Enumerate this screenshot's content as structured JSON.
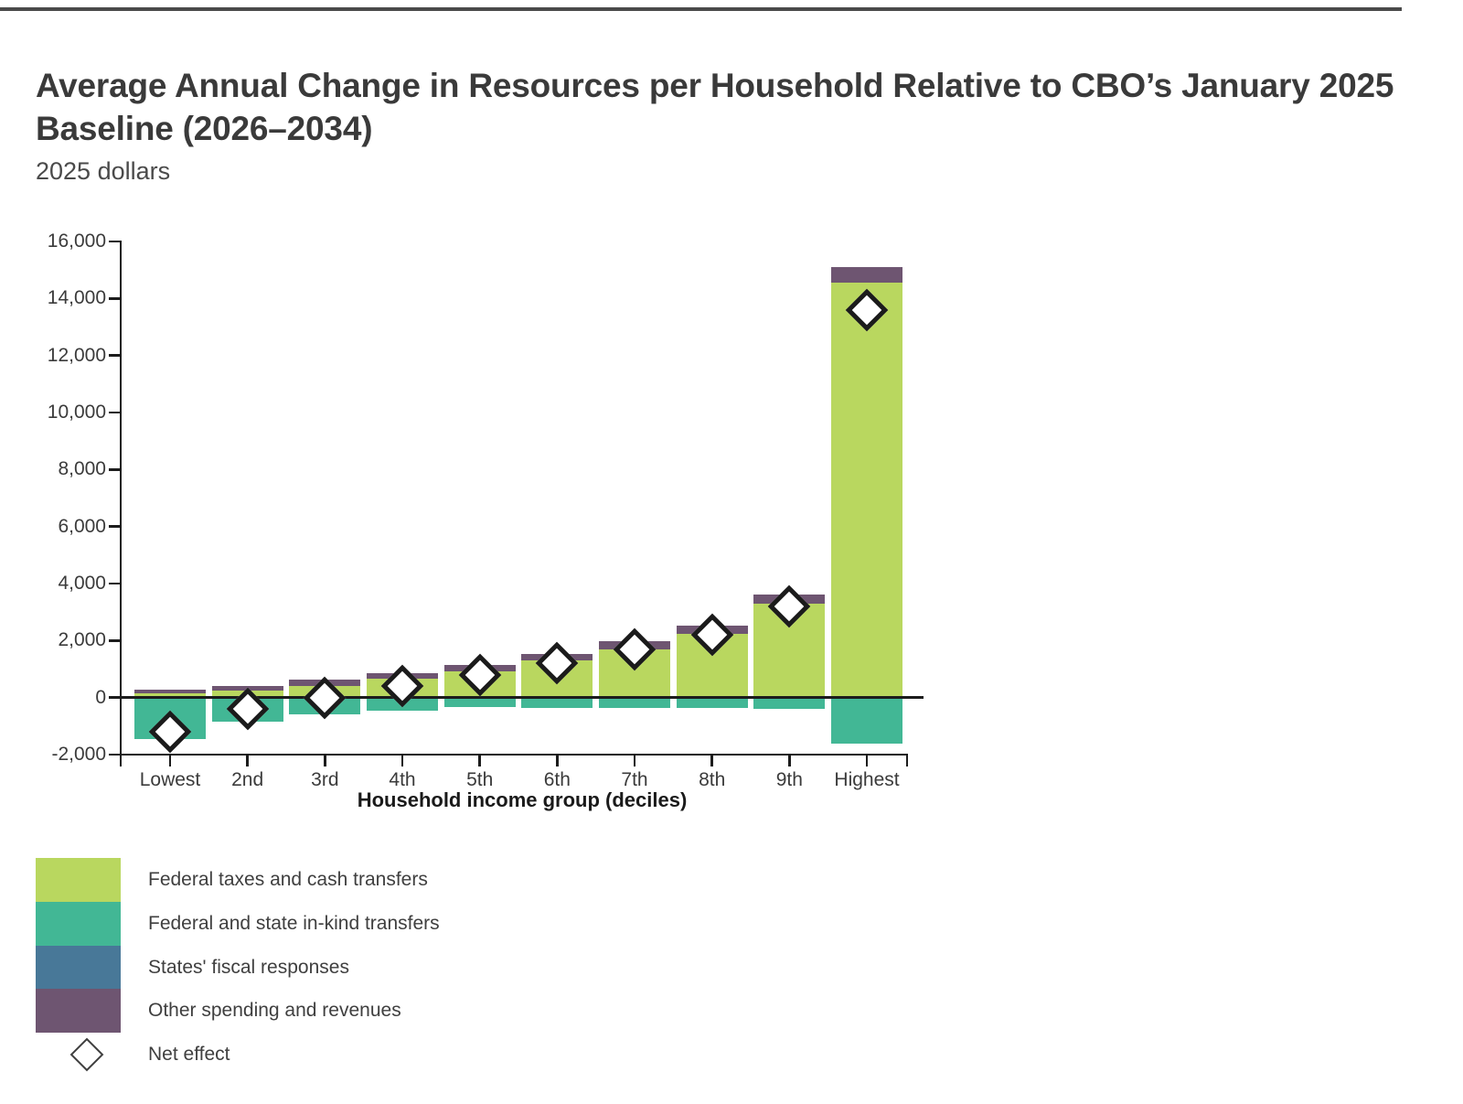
{
  "header": {
    "title_line1": "Average Annual Change in Resources per Household Relative to CBO’s January 2025",
    "title_line2": "Baseline (2026–2034)",
    "subtitle": "2025 dollars"
  },
  "chart_data": {
    "type": "bar",
    "stacked": true,
    "title": "Average Annual Change in Resources per Household Relative to CBO’s January 2025 Baseline (2026–2034)",
    "subtitle": "2025 dollars",
    "xlabel": "Household income group (deciles)",
    "ylabel": "",
    "units": "2025 dollars",
    "ylim": [
      -2000,
      16000
    ],
    "ytick_step": 2000,
    "ytick_labels": [
      "16,000",
      "14,000",
      "12,000",
      "10,000",
      "8,000",
      "6,000",
      "4,000",
      "2,000",
      "0",
      "-2,000"
    ],
    "categories": [
      "Lowest",
      "2nd",
      "3rd",
      "4th",
      "5th",
      "6th",
      "7th",
      "8th",
      "9th",
      "Highest"
    ],
    "grid": false,
    "legend_position": "bottom-left",
    "series": [
      {
        "name": "Federal taxes and cash transfers",
        "color": "#b9d75f",
        "values": [
          150,
          250,
          420,
          670,
          930,
          1300,
          1700,
          2250,
          3300,
          14550
        ]
      },
      {
        "name": "Federal and state in-kind transfers",
        "color": "#42b795",
        "values": [
          -1450,
          -830,
          -600,
          -460,
          -340,
          -380,
          -360,
          -370,
          -410,
          -1600
        ]
      },
      {
        "name": "States' fiscal responses",
        "color": "#487898",
        "values": [
          0,
          0,
          0,
          0,
          0,
          0,
          0,
          0,
          0,
          0
        ]
      },
      {
        "name": "Other spending and revenues",
        "color": "#6e5571",
        "values": [
          120,
          150,
          210,
          200,
          230,
          240,
          290,
          280,
          300,
          550
        ]
      }
    ],
    "net_effect": {
      "name": "Net effect",
      "marker": "diamond",
      "values": [
        -1200,
        -400,
        0,
        400,
        800,
        1200,
        1700,
        2200,
        3200,
        13600
      ]
    }
  },
  "legend": {
    "items": [
      {
        "label": "Federal taxes and cash transfers",
        "color": "#b9d75f",
        "type": "swatch"
      },
      {
        "label": "Federal and state in-kind transfers",
        "color": "#42b795",
        "type": "swatch"
      },
      {
        "label": "States' fiscal responses",
        "color": "#487898",
        "type": "swatch"
      },
      {
        "label": "Other spending and revenues",
        "color": "#6e5571",
        "type": "swatch"
      },
      {
        "label": "Net effect",
        "type": "diamond"
      }
    ]
  }
}
